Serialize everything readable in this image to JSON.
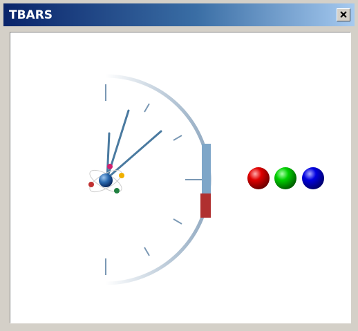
{
  "window": {
    "title": "TBARS"
  }
}
